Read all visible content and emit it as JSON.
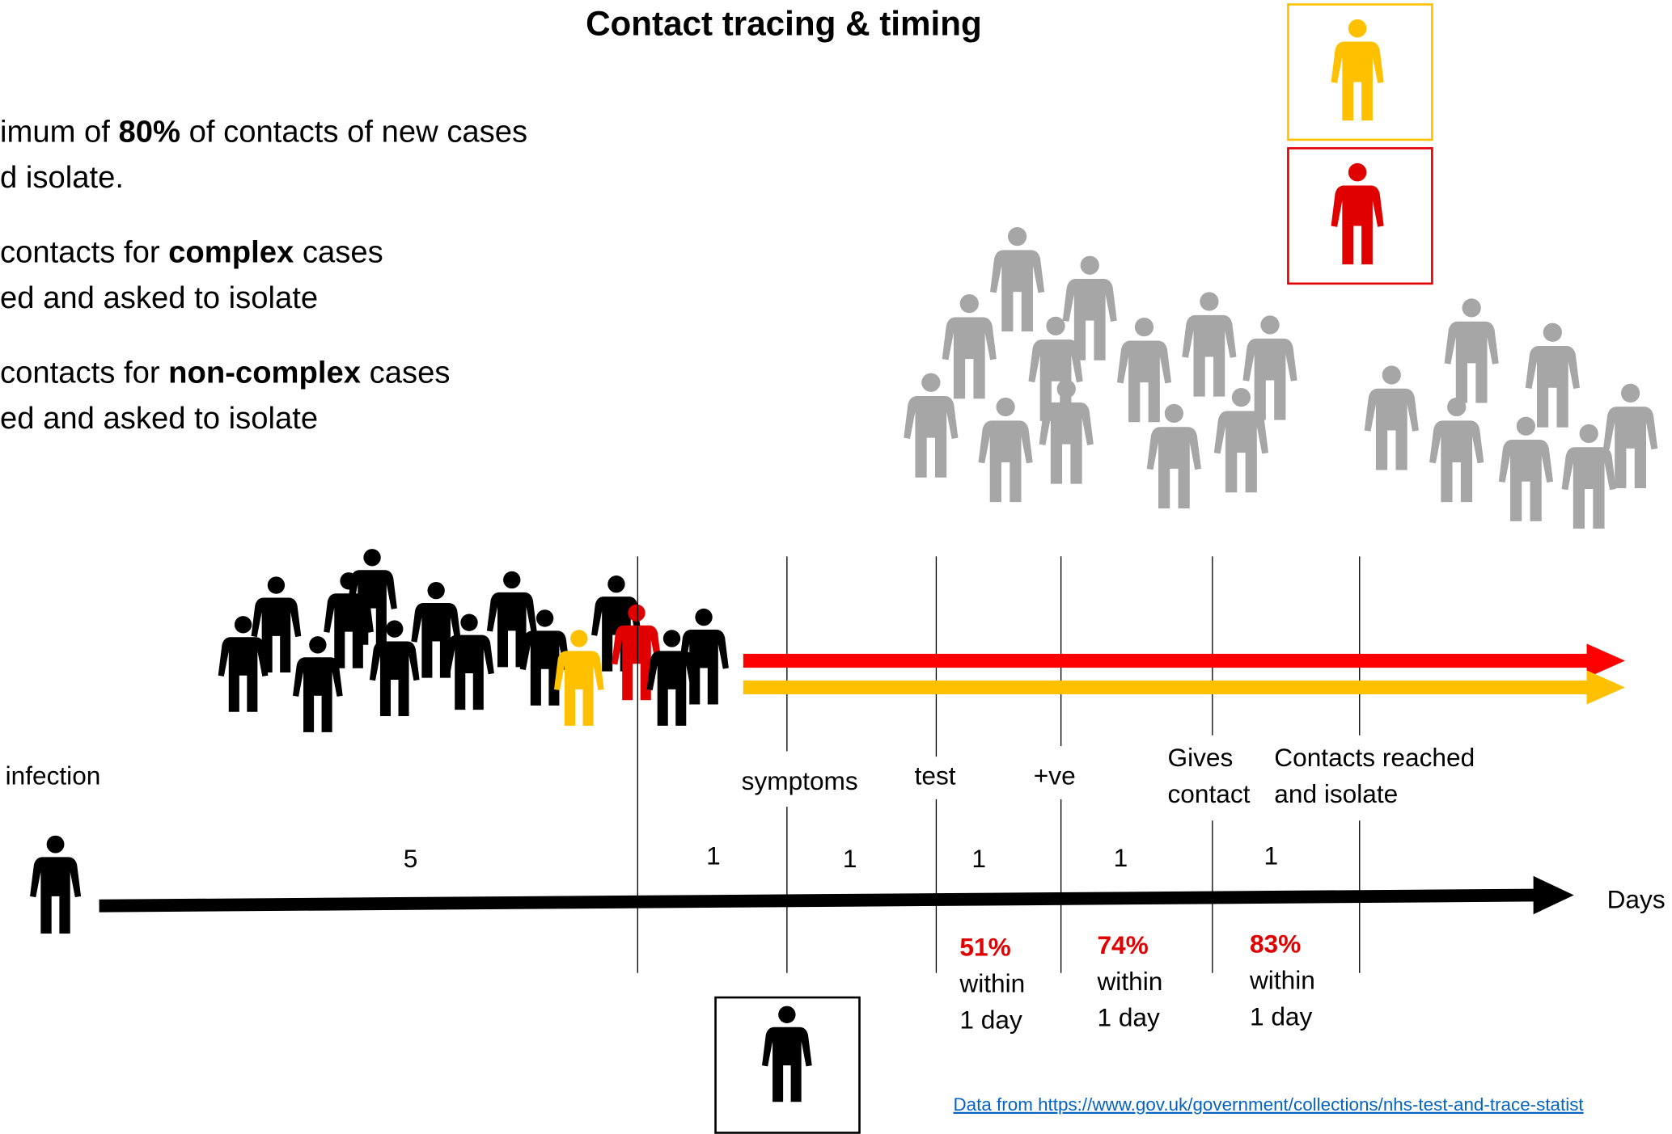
{
  "title": "Contact tracing & timing",
  "bullets": [
    {
      "before": "imum of ",
      "bold": "80%",
      "after": " of contacts of new cases",
      "line2": "d isolate."
    },
    {
      "before": "contacts for ",
      "bold": "complex",
      "after": " cases",
      "line2": "ed and asked to isolate"
    },
    {
      "before": "contacts for ",
      "bold": "non-complex",
      "after": " cases",
      "line2": "ed and asked to isolate"
    }
  ],
  "timeline": {
    "events": [
      {
        "lines": [
          "infection"
        ]
      },
      {
        "lines": [
          "symptoms"
        ]
      },
      {
        "lines": [
          "test"
        ]
      },
      {
        "lines": [
          "+ve"
        ]
      },
      {
        "lines": [
          "Gives",
          "contact"
        ]
      },
      {
        "lines": [
          "Contacts reached",
          "and isolate"
        ]
      }
    ],
    "intervals": [
      5,
      1,
      1,
      1,
      1,
      1
    ],
    "axis_label": "Days",
    "stats": [
      {
        "value": "51%",
        "lines": [
          "within",
          "1 day"
        ]
      },
      {
        "value": "74%",
        "lines": [
          "within",
          "1 day"
        ]
      },
      {
        "value": "83%",
        "lines": [
          "within",
          "1 day"
        ]
      }
    ]
  },
  "source": "Data from https://www.gov.uk/government/collections/nhs-test-and-trace-statist"
}
